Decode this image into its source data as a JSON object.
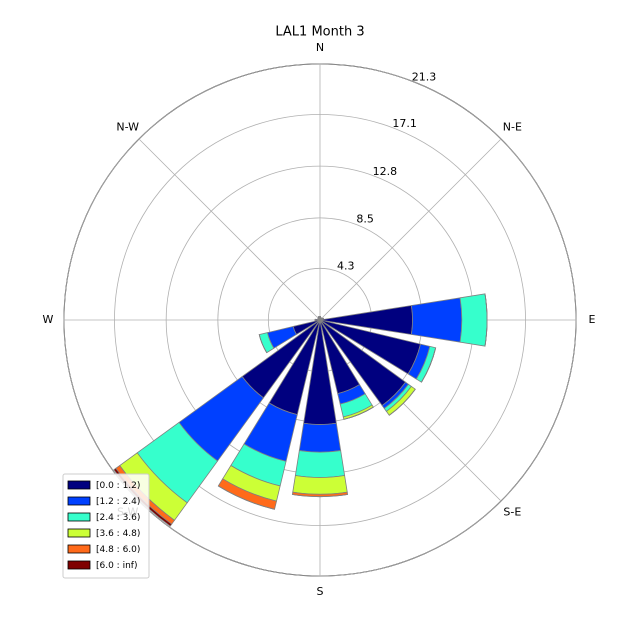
{
  "chart_data": {
    "type": "windrose",
    "title": "LAL1 Month 3",
    "x": [
      0,
      22.5,
      45,
      67.5,
      90,
      112.5,
      135,
      157.5,
      180,
      202.5,
      225,
      247.5,
      270,
      292.5,
      315,
      337.5
    ],
    "xticks": [
      {
        "value": 0,
        "label": "N"
      },
      {
        "value": 45,
        "label": "N-E"
      },
      {
        "value": 90,
        "label": "E"
      },
      {
        "value": 135,
        "label": "S-E"
      },
      {
        "value": 180,
        "label": "S"
      },
      {
        "value": 225,
        "label": "S-W"
      },
      {
        "value": 270,
        "label": "W"
      },
      {
        "value": 315,
        "label": "N-W"
      }
    ],
    "ylim": [
      0,
      21.3
    ],
    "yticks": [
      4.3,
      8.5,
      12.8,
      17.1,
      21.3
    ],
    "grid": true,
    "legend": "lower left",
    "series": [
      {
        "name": "[0.0 : 1.2)",
        "color": "#00007f",
        "values": [
          0.3,
          0.2,
          0.2,
          0.3,
          7.7,
          8.6,
          8.8,
          6.3,
          8.7,
          8.1,
          8.0,
          2.3,
          0.4,
          0.2,
          0.2,
          0.3
        ]
      },
      {
        "name": "[1.2 : 2.4)",
        "color": "#0040ff",
        "values": [
          0,
          0,
          0,
          0,
          4.1,
          0.8,
          0.3,
          0.9,
          2.3,
          4.0,
          6.5,
          2.2,
          0,
          0,
          0,
          0
        ]
      },
      {
        "name": "[2.4 : 3.6)",
        "color": "#36ffcc",
        "values": [
          0,
          0,
          0,
          0,
          2.1,
          0.5,
          0.3,
          1.1,
          2.1,
          2.1,
          4.3,
          0.7,
          0,
          0,
          0,
          0
        ]
      },
      {
        "name": "[3.6 : 4.8)",
        "color": "#ccff36",
        "values": [
          0,
          0,
          0,
          0,
          0,
          0,
          0.4,
          0.2,
          1.4,
          1.3,
          1.8,
          0,
          0,
          0,
          0,
          0
        ]
      },
      {
        "name": "[4.8 : 6.0)",
        "color": "#ff6a1a",
        "values": [
          0,
          0,
          0,
          0,
          0,
          0,
          0,
          0,
          0.2,
          0.7,
          0.4,
          0,
          0,
          0,
          0,
          0
        ]
      },
      {
        "name": "[6.0 : inf)",
        "color": "#7f0000",
        "values": [
          0,
          0,
          0,
          0,
          0,
          0,
          0,
          0,
          0,
          0,
          0.2,
          0,
          0,
          0,
          0,
          0
        ]
      }
    ]
  }
}
